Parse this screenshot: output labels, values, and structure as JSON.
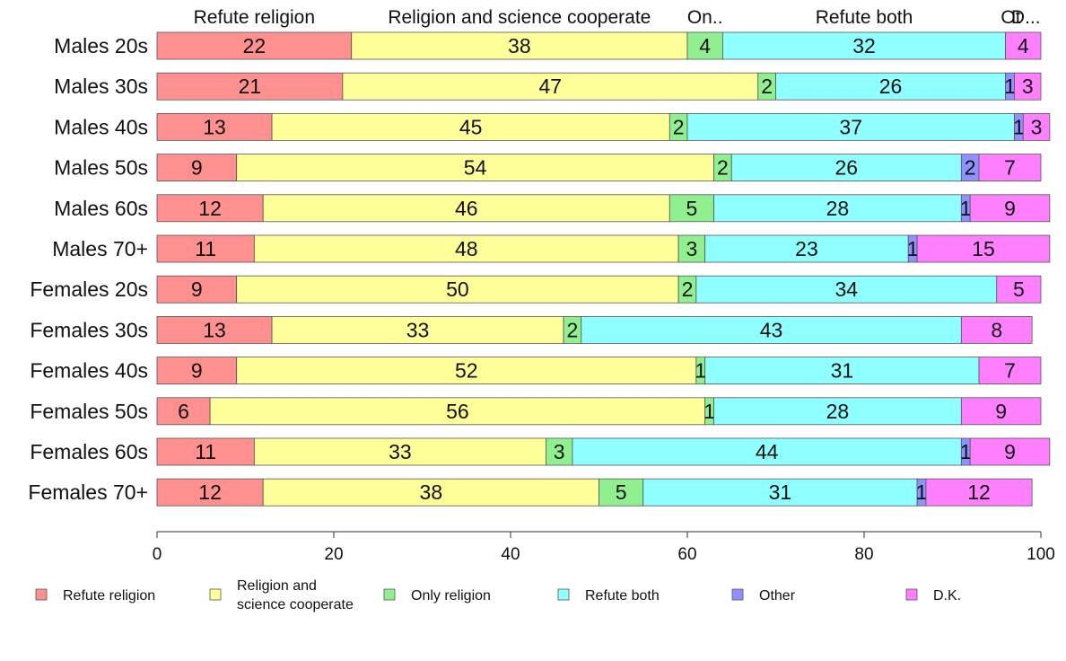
{
  "chart_data": {
    "type": "bar",
    "orientation": "horizontal",
    "stacked": true,
    "categories": [
      "Males 20s",
      "Males 30s",
      "Males 40s",
      "Males 50s",
      "Males 60s",
      "Males 70+",
      "Females 20s",
      "Females 30s",
      "Females 40s",
      "Females 50s",
      "Females 60s",
      "Females 70+"
    ],
    "series": [
      {
        "name": "Refute religion",
        "color": "#ff9090",
        "values": [
          22,
          21,
          13,
          9,
          12,
          11,
          9,
          13,
          9,
          6,
          11,
          12
        ]
      },
      {
        "name": "Religion and science cooperate",
        "color": "#ffff99",
        "values": [
          38,
          47,
          45,
          54,
          46,
          48,
          50,
          33,
          52,
          56,
          33,
          38
        ]
      },
      {
        "name": "Only religion",
        "color": "#90f090",
        "values": [
          4,
          2,
          2,
          2,
          5,
          3,
          2,
          2,
          1,
          1,
          3,
          5
        ]
      },
      {
        "name": "Refute both",
        "color": "#90ffff",
        "values": [
          32,
          26,
          37,
          26,
          28,
          23,
          34,
          43,
          31,
          28,
          44,
          31
        ]
      },
      {
        "name": "Other",
        "color": "#9090ff",
        "values": [
          0,
          1,
          1,
          2,
          1,
          1,
          0,
          0,
          0,
          0,
          1,
          1
        ]
      },
      {
        "name": "D.K.",
        "color": "#ff80ff",
        "values": [
          4,
          3,
          3,
          7,
          9,
          15,
          5,
          8,
          7,
          9,
          9,
          12
        ]
      }
    ],
    "header_labels": [
      "Refute religion",
      "Religion and science cooperate",
      "On..",
      "Refute both",
      "Ot",
      "D..."
    ],
    "legend_labels": [
      [
        "Refute religion"
      ],
      [
        "Religion and",
        "science cooperate"
      ],
      [
        "Only religion"
      ],
      [
        "Refute both"
      ],
      [
        "Other"
      ],
      [
        "D.K."
      ]
    ],
    "x_ticks": [
      "0",
      "20",
      "40",
      "60",
      "80",
      "100"
    ],
    "xlim": [
      0,
      100
    ],
    "legend_position": "bottom",
    "grid": false
  }
}
